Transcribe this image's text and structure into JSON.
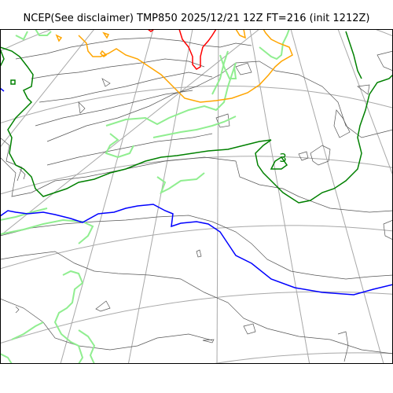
{
  "title": "NCEP(See disclaimer) TMP850 2025/12/21 12Z FT=216 (init 1212Z)",
  "contour_labels": [
    {
      "text": "3"
    }
  ],
  "colors": {
    "graticule": "#a8a8a8",
    "coastline": "#555555",
    "isotherm_0": "#0000ff",
    "isotherm_3": "#008000",
    "isotherm_6": "#90ee90",
    "isotherm_9": "#ffa500",
    "isotherm_12": "#ff0000",
    "frame": "#000000"
  }
}
